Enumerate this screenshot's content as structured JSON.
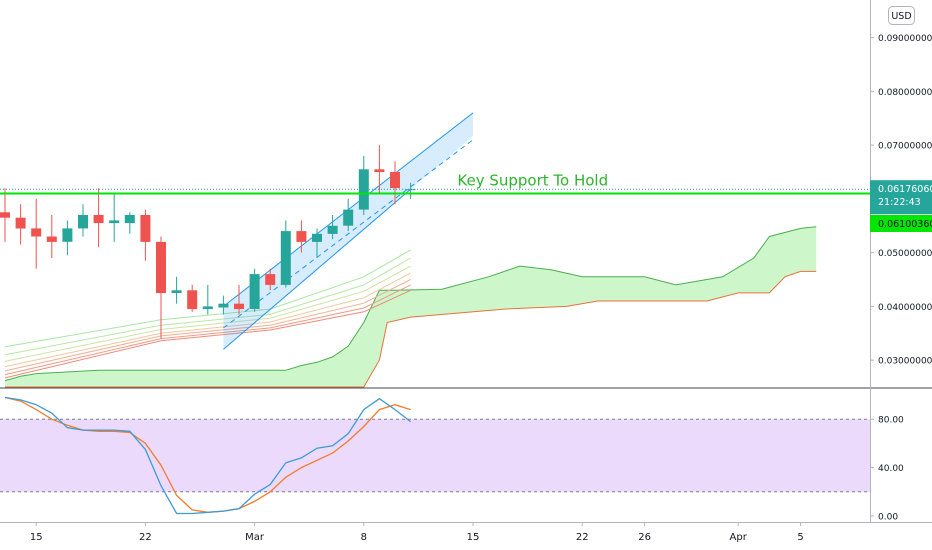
{
  "chart_data": {
    "type": "candlestick",
    "currency": "USD",
    "price_axis": {
      "range": [
        0.025,
        0.097
      ],
      "ticks": [
        "0.03000000",
        "0.04000000",
        "0.05000000",
        "0.06000000",
        "0.07000000",
        "0.08000000",
        "0.09000000"
      ],
      "tick_values": [
        0.03,
        0.04,
        0.05,
        0.06,
        0.07,
        0.08,
        0.09
      ]
    },
    "oscillator_axis": {
      "range": [
        -5,
        105
      ],
      "ticks": [
        "80.00",
        "40.00",
        "0.00"
      ],
      "tick_values": [
        80,
        40,
        0
      ],
      "band": [
        20,
        80
      ]
    },
    "x_axis": {
      "first_day": 13,
      "last_day": 66,
      "ticks": [
        {
          "label": "15",
          "day": 15
        },
        {
          "label": "22",
          "day": 22
        },
        {
          "label": "Mar",
          "day": 29
        },
        {
          "label": "8",
          "day": 36
        },
        {
          "label": "15",
          "day": 43
        },
        {
          "label": "22",
          "day": 50
        },
        {
          "label": "26",
          "day": 54
        },
        {
          "label": "Apr",
          "day": 60
        },
        {
          "label": "5",
          "day": 64
        }
      ]
    },
    "candles": [
      {
        "day": 13,
        "o": 0.0575,
        "h": 0.062,
        "l": 0.052,
        "c": 0.0565
      },
      {
        "day": 14,
        "o": 0.0565,
        "h": 0.059,
        "l": 0.0515,
        "c": 0.0545
      },
      {
        "day": 15,
        "o": 0.0545,
        "h": 0.06,
        "l": 0.047,
        "c": 0.053
      },
      {
        "day": 16,
        "o": 0.053,
        "h": 0.057,
        "l": 0.049,
        "c": 0.052
      },
      {
        "day": 17,
        "o": 0.052,
        "h": 0.056,
        "l": 0.0495,
        "c": 0.0545
      },
      {
        "day": 18,
        "o": 0.0545,
        "h": 0.059,
        "l": 0.053,
        "c": 0.057
      },
      {
        "day": 19,
        "o": 0.057,
        "h": 0.062,
        "l": 0.051,
        "c": 0.0555
      },
      {
        "day": 20,
        "o": 0.0555,
        "h": 0.061,
        "l": 0.052,
        "c": 0.056
      },
      {
        "day": 21,
        "o": 0.0555,
        "h": 0.0575,
        "l": 0.0535,
        "c": 0.057
      },
      {
        "day": 22,
        "o": 0.057,
        "h": 0.058,
        "l": 0.0485,
        "c": 0.052
      },
      {
        "day": 23,
        "o": 0.052,
        "h": 0.053,
        "l": 0.034,
        "c": 0.0425
      },
      {
        "day": 24,
        "o": 0.0425,
        "h": 0.0455,
        "l": 0.0405,
        "c": 0.043
      },
      {
        "day": 25,
        "o": 0.043,
        "h": 0.044,
        "l": 0.039,
        "c": 0.0395
      },
      {
        "day": 26,
        "o": 0.0395,
        "h": 0.044,
        "l": 0.0385,
        "c": 0.04
      },
      {
        "day": 27,
        "o": 0.0398,
        "h": 0.042,
        "l": 0.0385,
        "c": 0.0405
      },
      {
        "day": 28,
        "o": 0.0405,
        "h": 0.044,
        "l": 0.0385,
        "c": 0.0395
      },
      {
        "day": 29,
        "o": 0.0395,
        "h": 0.047,
        "l": 0.039,
        "c": 0.046
      },
      {
        "day": 30,
        "o": 0.046,
        "h": 0.047,
        "l": 0.043,
        "c": 0.044
      },
      {
        "day": 31,
        "o": 0.044,
        "h": 0.056,
        "l": 0.0435,
        "c": 0.054
      },
      {
        "day": 32,
        "o": 0.054,
        "h": 0.056,
        "l": 0.05,
        "c": 0.052
      },
      {
        "day": 33,
        "o": 0.052,
        "h": 0.0545,
        "l": 0.049,
        "c": 0.0535
      },
      {
        "day": 34,
        "o": 0.0535,
        "h": 0.057,
        "l": 0.0525,
        "c": 0.055
      },
      {
        "day": 35,
        "o": 0.055,
        "h": 0.06,
        "l": 0.054,
        "c": 0.058
      },
      {
        "day": 36,
        "o": 0.058,
        "h": 0.068,
        "l": 0.057,
        "c": 0.0655
      },
      {
        "day": 37,
        "o": 0.0655,
        "h": 0.07,
        "l": 0.061,
        "c": 0.065
      },
      {
        "day": 38,
        "o": 0.065,
        "h": 0.067,
        "l": 0.059,
        "c": 0.062
      },
      {
        "day": 39,
        "o": 0.0617,
        "h": 0.063,
        "l": 0.06,
        "c": 0.0618
      }
    ],
    "ribbon": [
      {
        "color": "#a8e6a3",
        "points": [
          [
            13,
            0.0325
          ],
          [
            23,
            0.0375
          ],
          [
            30,
            0.0395
          ],
          [
            36,
            0.0455
          ],
          [
            39,
            0.0505
          ]
        ]
      },
      {
        "color": "#b9e7a8",
        "points": [
          [
            13,
            0.031
          ],
          [
            23,
            0.0365
          ],
          [
            30,
            0.0385
          ],
          [
            36,
            0.044
          ],
          [
            39,
            0.049
          ]
        ]
      },
      {
        "color": "#cde3a5",
        "points": [
          [
            13,
            0.0298
          ],
          [
            23,
            0.0357
          ],
          [
            30,
            0.0378
          ],
          [
            36,
            0.0428
          ],
          [
            39,
            0.0475
          ]
        ]
      },
      {
        "color": "#f2c7a0",
        "points": [
          [
            13,
            0.0288
          ],
          [
            23,
            0.035
          ],
          [
            30,
            0.0371
          ],
          [
            36,
            0.0416
          ],
          [
            39,
            0.0462
          ]
        ]
      },
      {
        "color": "#f5b093",
        "points": [
          [
            13,
            0.028
          ],
          [
            23,
            0.0345
          ],
          [
            30,
            0.0365
          ],
          [
            36,
            0.0406
          ],
          [
            39,
            0.045
          ]
        ]
      },
      {
        "color": "#f39a86",
        "points": [
          [
            13,
            0.0273
          ],
          [
            23,
            0.034
          ],
          [
            30,
            0.036
          ],
          [
            36,
            0.0397
          ],
          [
            39,
            0.044
          ]
        ]
      },
      {
        "color": "#ef8a7a",
        "points": [
          [
            13,
            0.0267
          ],
          [
            23,
            0.0336
          ],
          [
            30,
            0.0356
          ],
          [
            36,
            0.039
          ],
          [
            39,
            0.043
          ]
        ]
      }
    ],
    "cloud": {
      "upper": [
        [
          13,
          0.0262
        ],
        [
          14,
          0.027
        ],
        [
          15,
          0.0275
        ],
        [
          19,
          0.0281
        ],
        [
          31,
          0.0281
        ],
        [
          32,
          0.029
        ],
        [
          33,
          0.0296
        ],
        [
          34,
          0.0306
        ],
        [
          35,
          0.0326
        ],
        [
          36,
          0.037
        ],
        [
          37,
          0.043
        ],
        [
          38,
          0.043
        ],
        [
          41,
          0.0432
        ],
        [
          44,
          0.0455
        ],
        [
          46,
          0.0475
        ],
        [
          48,
          0.0468
        ],
        [
          50,
          0.0455
        ],
        [
          54,
          0.0455
        ],
        [
          56,
          0.044
        ],
        [
          59,
          0.0455
        ],
        [
          61,
          0.049
        ],
        [
          62,
          0.053
        ],
        [
          64,
          0.0545
        ],
        [
          65,
          0.0548
        ]
      ],
      "lower": [
        [
          13,
          0.025
        ],
        [
          36,
          0.025
        ],
        [
          37,
          0.03
        ],
        [
          37.5,
          0.037
        ],
        [
          39,
          0.038
        ],
        [
          45,
          0.0395
        ],
        [
          49,
          0.04
        ],
        [
          51,
          0.041
        ],
        [
          58,
          0.041
        ],
        [
          60,
          0.0425
        ],
        [
          62,
          0.0425
        ],
        [
          63,
          0.0455
        ],
        [
          64,
          0.0465
        ],
        [
          65,
          0.0465
        ]
      ]
    },
    "channel": {
      "lower": [
        [
          27,
          0.032
        ],
        [
          39,
          0.0618
        ]
      ],
      "upper": [
        [
          27,
          0.04
        ],
        [
          43,
          0.076
        ]
      ],
      "mid": [
        [
          27,
          0.036
        ],
        [
          43,
          0.071
        ]
      ]
    },
    "support_line": {
      "value": 0.061,
      "label": "Key Support To Hold",
      "label_day": 42,
      "label_value": 0.0625
    },
    "dotted_level": 0.0618,
    "price_badge": {
      "value": "0.06176060",
      "time": "21:22:43"
    },
    "support_badge": {
      "value": "0.06100360"
    },
    "stoch_k": [
      [
        13,
        98
      ],
      [
        14,
        96
      ],
      [
        15,
        92
      ],
      [
        16,
        85
      ],
      [
        17,
        73
      ],
      [
        18,
        71
      ],
      [
        19,
        71
      ],
      [
        20,
        71
      ],
      [
        21,
        70
      ],
      [
        22,
        55
      ],
      [
        23,
        25
      ],
      [
        24,
        2
      ],
      [
        25,
        2
      ],
      [
        26,
        3
      ],
      [
        27,
        4
      ],
      [
        28,
        6
      ],
      [
        29,
        18
      ],
      [
        30,
        26
      ],
      [
        31,
        44
      ],
      [
        32,
        48
      ],
      [
        33,
        56
      ],
      [
        34,
        58
      ],
      [
        35,
        68
      ],
      [
        36,
        88
      ],
      [
        37,
        97
      ],
      [
        38,
        88
      ],
      [
        39,
        78
      ]
    ],
    "stoch_d": [
      [
        13,
        98
      ],
      [
        14,
        95
      ],
      [
        15,
        88
      ],
      [
        16,
        80
      ],
      [
        17,
        75
      ],
      [
        18,
        71
      ],
      [
        19,
        70
      ],
      [
        20,
        70
      ],
      [
        21,
        69
      ],
      [
        22,
        60
      ],
      [
        23,
        42
      ],
      [
        24,
        17
      ],
      [
        25,
        5
      ],
      [
        26,
        3
      ],
      [
        27,
        4
      ],
      [
        28,
        6
      ],
      [
        29,
        12
      ],
      [
        30,
        20
      ],
      [
        31,
        32
      ],
      [
        32,
        40
      ],
      [
        33,
        46
      ],
      [
        34,
        52
      ],
      [
        35,
        62
      ],
      [
        36,
        74
      ],
      [
        37,
        88
      ],
      [
        38,
        92
      ],
      [
        39,
        88
      ]
    ]
  }
}
